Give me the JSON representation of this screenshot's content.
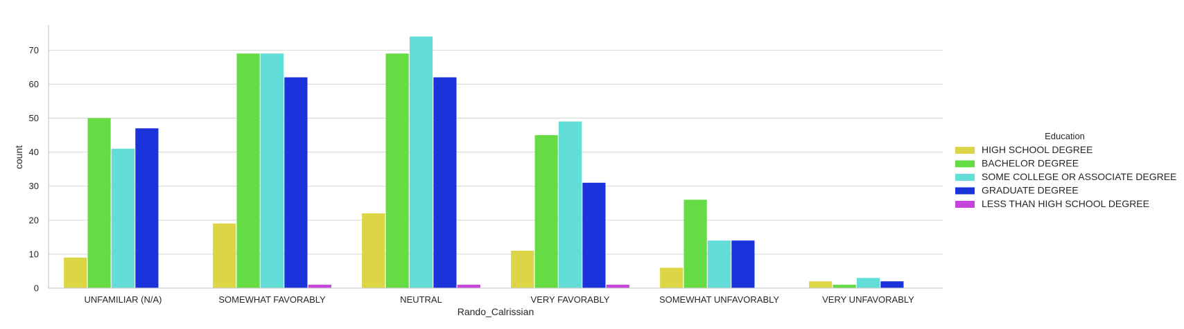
{
  "chart_data": {
    "type": "bar",
    "xlabel": "Rando_Calrissian",
    "ylabel": "count",
    "ylim": [
      0,
      77
    ],
    "yticks": [
      0,
      10,
      20,
      30,
      40,
      50,
      60,
      70
    ],
    "grid": true,
    "legend_title": "Education",
    "legend_placement": "right",
    "categories": [
      "UNFAMILIAR (N/A)",
      "SOMEWHAT FAVORABLY",
      "NEUTRAL",
      "VERY FAVORABLY",
      "SOMEWHAT UNFAVORABLY",
      "VERY UNFAVORABLY"
    ],
    "series": [
      {
        "name": "HIGH SCHOOL DEGREE",
        "color": "#dcd647",
        "values": [
          9,
          19,
          22,
          11,
          6,
          2
        ]
      },
      {
        "name": "BACHELOR DEGREE",
        "color": "#66dc44",
        "values": [
          50,
          69,
          69,
          45,
          26,
          1
        ]
      },
      {
        "name": "SOME COLLEGE OR ASSOCIATE DEGREE",
        "color": "#62ddd7",
        "values": [
          41,
          69,
          74,
          49,
          14,
          3
        ]
      },
      {
        "name": "GRADUATE DEGREE",
        "color": "#1a33db",
        "values": [
          47,
          62,
          62,
          31,
          14,
          2
        ]
      },
      {
        "name": "LESS THAN HIGH SCHOOL DEGREE",
        "color": "#c644dc",
        "values": [
          0,
          1,
          1,
          1,
          0,
          0
        ]
      }
    ]
  }
}
